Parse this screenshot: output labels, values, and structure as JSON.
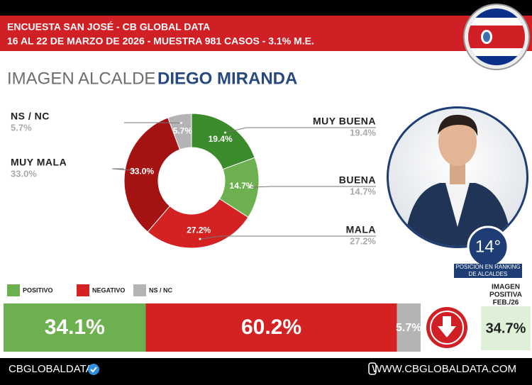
{
  "header": {
    "line1": "ENCUESTA SAN JOSÉ - CB GLOBAL DATA",
    "line2": "16 AL 22 DE MARZO DE 2026 - MUESTRA 981 CASOS - 3.1% M.E."
  },
  "heading": {
    "prefix": "IMAGEN ALCALDE",
    "name": "DIEGO MIRANDA"
  },
  "chart_data": [
    {
      "type": "pie",
      "donut": true,
      "categories": [
        "MUY BUENA",
        "BUENA",
        "MALA",
        "MUY MALA",
        "NS / NC"
      ],
      "values": [
        19.4,
        14.7,
        27.2,
        33.0,
        5.7
      ],
      "value_labels": [
        "19.4%",
        "14.7%",
        "27.2%",
        "33.0%",
        "5.7%"
      ],
      "colors": [
        "#3b8a2c",
        "#6db04f",
        "#d42222",
        "#a51212",
        "#b4b4b4"
      ]
    },
    {
      "type": "stacked-bar",
      "orientation": "horizontal",
      "xlim": [
        0,
        100
      ],
      "series": [
        {
          "name": "POSITIVO",
          "color": "#6db04f",
          "values": [
            34.1
          ],
          "value_labels": [
            "34.1%"
          ]
        },
        {
          "name": "NEGATIVO",
          "color": "#d42222",
          "values": [
            60.2
          ],
          "value_labels": [
            "60.2%"
          ]
        },
        {
          "name": "NS / NC",
          "color": "#b4b4b4",
          "values": [
            5.7
          ],
          "value_labels": [
            "5.7%"
          ]
        }
      ]
    }
  ],
  "ranking": {
    "position": "14°",
    "caption_line1": "POSICION EN RANKING",
    "caption_line2": "DE ALCALDES"
  },
  "previous": {
    "line1": "IMAGEN",
    "line2": "POSITIVA",
    "line3": "FEB./26",
    "value": "34.7%"
  },
  "footer": {
    "brand": "CBGLOBALDATA",
    "url": "WWW.CBGLOBALDATA.COM"
  }
}
